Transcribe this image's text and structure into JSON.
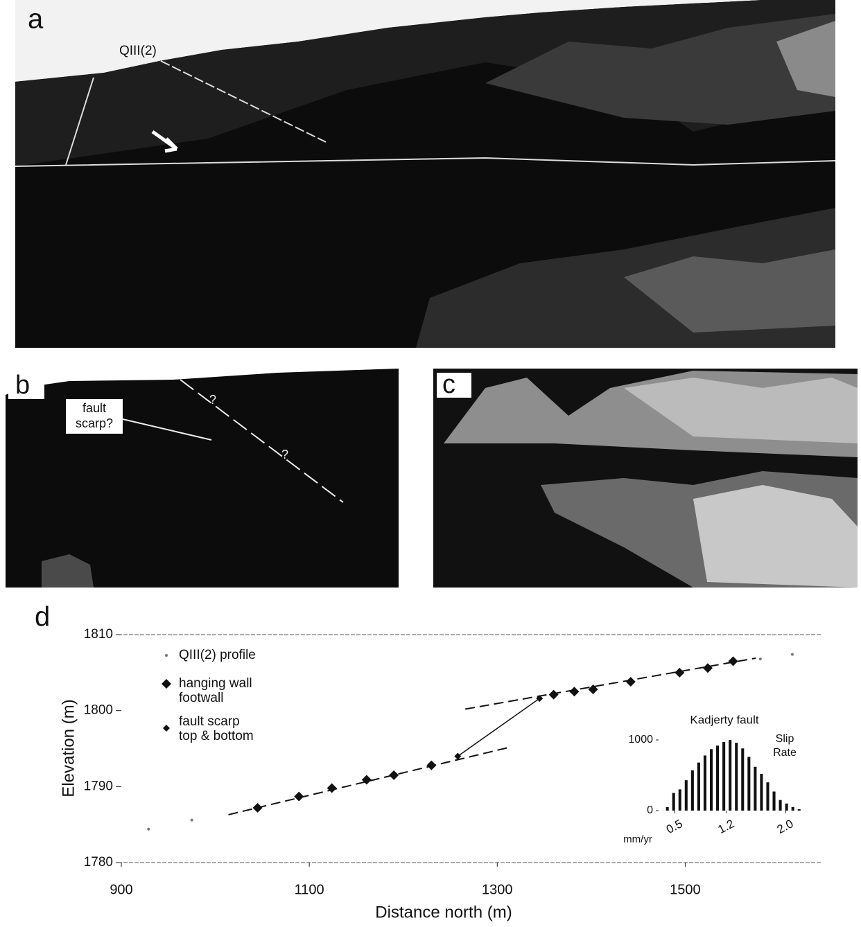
{
  "panels": {
    "a": {
      "label": "a",
      "annotation": "QIII(2)"
    },
    "b": {
      "label": "b",
      "annotation": [
        "fault",
        "scarp?"
      ],
      "query_marks": [
        "?",
        "?"
      ]
    },
    "c": {
      "label": "c"
    },
    "d": {
      "label": "d"
    }
  },
  "chart_data": {
    "type": "scatter",
    "xlabel": "Distance north (m)",
    "ylabel": "Elevation (m)",
    "xlim": [
      900,
      1645
    ],
    "ylim": [
      1780,
      1810
    ],
    "xticks": [
      900,
      1100,
      1300,
      1500
    ],
    "yticks": [
      1780,
      1790,
      1800,
      1810
    ],
    "series": [
      {
        "name": "QIII(2) profile",
        "marker": "dot",
        "color": "#777777",
        "x": [
          929,
          975,
          1580,
          1614
        ],
        "values": [
          1784.4,
          1785.6,
          1806.8,
          1807.4
        ]
      },
      {
        "name": "hanging wall",
        "marker": "diamond",
        "color": "#111111",
        "x": [
          1360,
          1382,
          1402,
          1442,
          1494,
          1524,
          1551
        ],
        "values": [
          1802.1,
          1802.5,
          1802.8,
          1803.8,
          1805.0,
          1805.6,
          1806.5
        ]
      },
      {
        "name": "footwall",
        "marker": "diamond",
        "color": "#111111",
        "x": [
          1045,
          1089,
          1124,
          1161,
          1190,
          1230
        ],
        "values": [
          1787.2,
          1788.7,
          1789.8,
          1790.9,
          1791.5,
          1792.8
        ]
      },
      {
        "name": [
          "fault scarp",
          "top & bottom"
        ],
        "marker": "small-diamond",
        "color": "#111111",
        "x": [
          1258,
          1345
        ],
        "values": [
          1794.0,
          1801.6
        ]
      }
    ],
    "fits": [
      {
        "x": [
          1014,
          1314
        ],
        "values": [
          1786.3,
          1795.2
        ]
      },
      {
        "x": [
          1266,
          1575
        ],
        "values": [
          1800.2,
          1806.9
        ]
      }
    ],
    "inset": {
      "type": "bar",
      "title": "Kadjerty fault",
      "ylabel": [
        "Slip",
        "Rate"
      ],
      "xlabel": "mm/yr",
      "xlim": [
        0.3,
        2.3
      ],
      "ylim": [
        0,
        1000
      ],
      "xticks": [
        0.5,
        1.2,
        {
          "value": 2,
          "label": "2.0"
        }
      ],
      "yticks": [
        0,
        1000
      ],
      "x": [
        0.4,
        0.485,
        0.57,
        0.655,
        0.74,
        0.825,
        0.91,
        0.995,
        1.08,
        1.165,
        1.25,
        1.335,
        1.42,
        1.505,
        1.59,
        1.675,
        1.76,
        1.845,
        1.93,
        2.015,
        2.1,
        2.185
      ],
      "values": [
        50,
        250,
        300,
        430,
        570,
        680,
        780,
        870,
        920,
        970,
        1000,
        960,
        880,
        760,
        620,
        520,
        400,
        270,
        150,
        100,
        50,
        20
      ]
    }
  }
}
